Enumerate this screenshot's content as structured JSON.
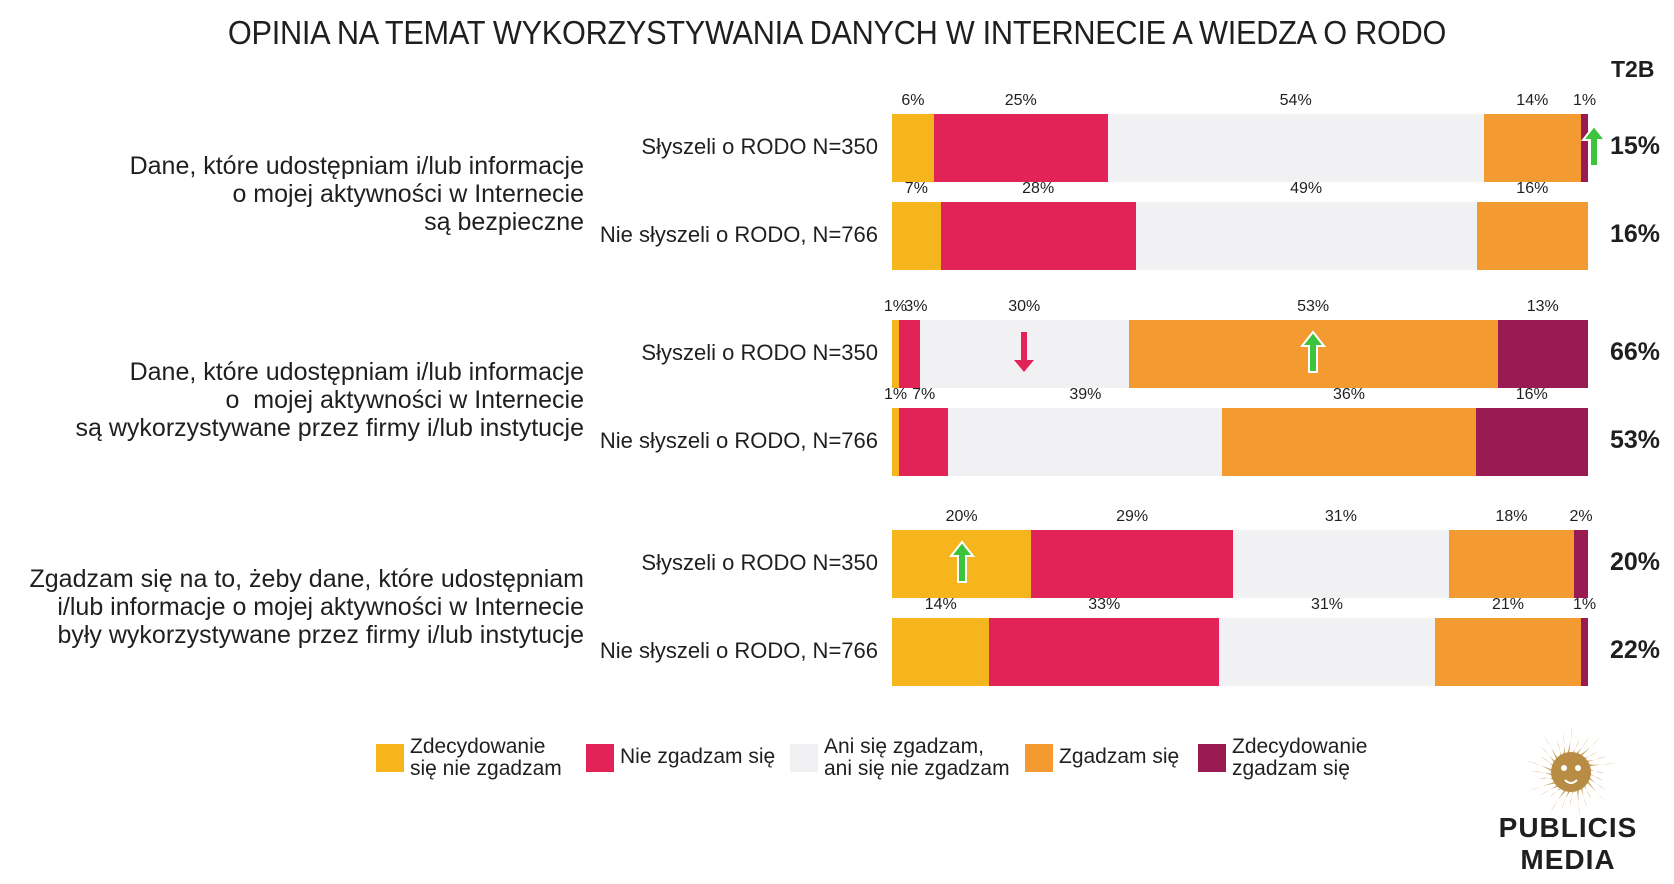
{
  "chart_data": {
    "type": "bar",
    "stacked": true,
    "orientation": "horizontal",
    "title": "OPINIA NA TEMAT WYKORZYSTYWANIA DANYCH W INTERNECIE A WIEDZA O RODO",
    "t2b_header": "T2B",
    "series_names": [
      "Zdecydowanie się nie zgadzam",
      "Nie zgadzam się",
      "Ani się zgadzam, ani się nie zgadzam",
      "Zgadzam się",
      "Zdecydowanie zgadzam się"
    ],
    "series_colors": [
      "#f6b51d",
      "#e22358",
      "#f1f1f3",
      "#f39a31",
      "#991b52"
    ],
    "questions": [
      {
        "text": [
          "Dane, które udostępniam i/lub informacje",
          "o mojej aktywności w Internecie",
          "są bezpieczne"
        ],
        "rows": [
          {
            "label": "Słyszeli o RODO N=350",
            "values": [
              6,
              25,
              54,
              14,
              1
            ],
            "labels": [
              "6%",
              "25%",
              "54%",
              "14%",
              "1%"
            ],
            "t2b": "15%",
            "arrows": [
              {
                "series": 4,
                "direction": "up",
                "color": "green"
              }
            ]
          },
          {
            "label": "Nie słyszeli o RODO, N=766",
            "values": [
              7,
              28,
              49,
              16,
              0
            ],
            "labels": [
              "7%",
              "28%",
              "49%",
              "16%",
              ""
            ],
            "t2b": "16%",
            "arrows": []
          }
        ]
      },
      {
        "text": [
          "Dane, które udostępniam i/lub informacje",
          " o  mojej aktywności w Internecie",
          "są wykorzystywane przez firmy i/lub instytucje"
        ],
        "rows": [
          {
            "label": "Słyszeli o RODO N=350",
            "values": [
              1,
              3,
              30,
              53,
              13
            ],
            "labels": [
              "1%",
              "3%",
              "30%",
              "53%",
              "13%"
            ],
            "t2b": "66%",
            "arrows": [
              {
                "series": 1,
                "direction": "down",
                "color": "red"
              },
              {
                "series": 2,
                "direction": "down",
                "color": "red"
              },
              {
                "series": 3,
                "direction": "up",
                "color": "green"
              }
            ]
          },
          {
            "label": "Nie słyszeli o RODO, N=766",
            "values": [
              1,
              7,
              39,
              36,
              16
            ],
            "labels": [
              "1%",
              "7%",
              "39%",
              "36%",
              "16%"
            ],
            "t2b": "53%",
            "arrows": []
          }
        ]
      },
      {
        "text": [
          "Zgadzam się na to, żeby dane, które udostępniam",
          "i/lub informacje o mojej aktywności w Internecie",
          "były wykorzystywane przez firmy i/lub instytucje"
        ],
        "rows": [
          {
            "label": "Słyszeli o RODO N=350",
            "values": [
              20,
              29,
              31,
              18,
              2
            ],
            "labels": [
              "20%",
              "29%",
              "31%",
              "18%",
              "2%"
            ],
            "t2b": "20%",
            "arrows": [
              {
                "series": 0,
                "direction": "up",
                "color": "green"
              }
            ]
          },
          {
            "label": "Nie słyszeli o RODO, N=766",
            "values": [
              14,
              33,
              31,
              21,
              1
            ],
            "labels": [
              "14%",
              "33%",
              "31%",
              "21%",
              "1%"
            ],
            "t2b": "22%",
            "arrows": []
          }
        ]
      }
    ]
  },
  "legend": [
    {
      "lines": [
        "Zdecydowanie",
        "się nie zgadzam"
      ],
      "color": "#f6b51d"
    },
    {
      "lines": [
        "Nie zgadzam się"
      ],
      "color": "#e22358"
    },
    {
      "lines": [
        "Ani się zgadzam,",
        "ani się nie zgadzam"
      ],
      "color": "#f1f1f3"
    },
    {
      "lines": [
        "Zgadzam się"
      ],
      "color": "#f39a31"
    },
    {
      "lines": [
        "Zdecydowanie",
        "zgadzam się"
      ],
      "color": "#991b52"
    }
  ],
  "logo": {
    "brand_lines": [
      "PUBLICIS",
      "MEDIA"
    ],
    "icon": "lion-head-icon"
  },
  "colors": {
    "arrow_up": "#3cc43c",
    "arrow_down": "#e22358"
  }
}
